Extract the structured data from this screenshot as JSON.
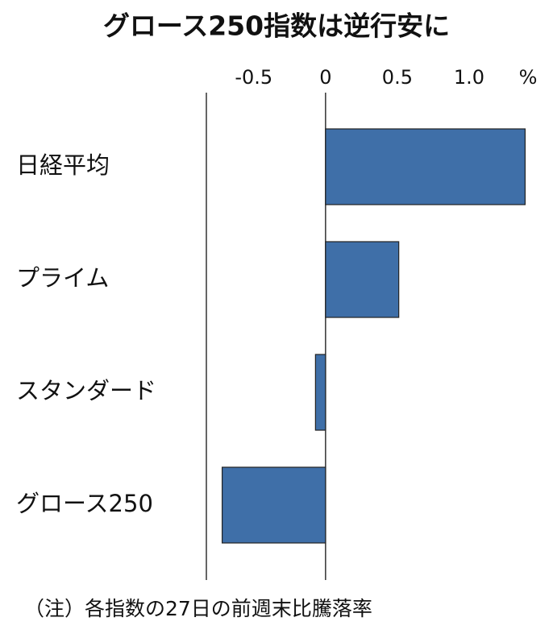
{
  "chart_data": {
    "type": "hbar",
    "title": "グロース250指数は逆行安に",
    "categories": [
      "日経平均",
      "プライム",
      "スタンダード",
      "グロース250"
    ],
    "values": [
      1.39,
      0.51,
      -0.07,
      -0.72
    ],
    "color": "#3f6fa8",
    "xlim": [
      -0.83,
      1.5
    ],
    "xticks": [
      -0.5,
      0,
      0.5,
      {
        "value": 1,
        "label": "1.0"
      }
    ],
    "x_unit": "%",
    "note": "（注）各指数の27日の前週末比騰落率"
  }
}
